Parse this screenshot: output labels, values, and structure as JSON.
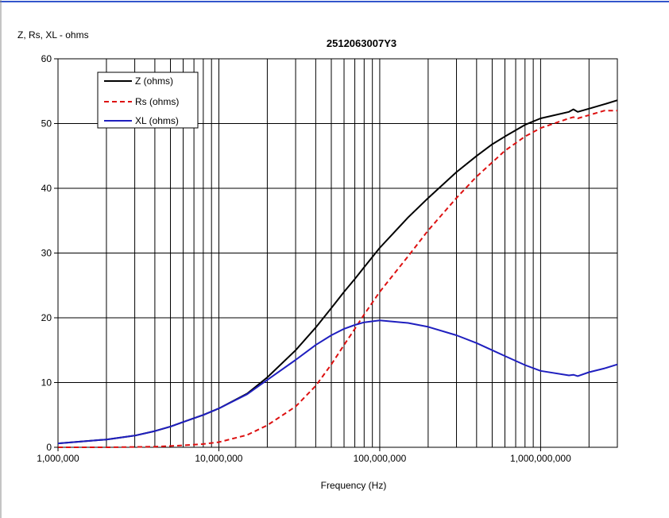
{
  "chart_data": {
    "type": "line",
    "title": "2512063007Y3",
    "ylabel": "Z, Rs, XL - ohms",
    "xlabel": "Frequency (Hz)",
    "x_scale": "log",
    "xlim": [
      1000000,
      3000000000
    ],
    "ylim": [
      0,
      60
    ],
    "x_ticks": [
      1000000,
      10000000,
      100000000,
      1000000000
    ],
    "x_tick_labels": [
      "1,000,000",
      "10,000,000",
      "100,000,000",
      "1,000,000,000"
    ],
    "y_ticks": [
      0,
      10,
      20,
      30,
      40,
      50,
      60
    ],
    "y_tick_labels": [
      "0",
      "10",
      "20",
      "30",
      "40",
      "50",
      "60"
    ],
    "grid": true,
    "legend_position": "top-left",
    "x": [
      1000000,
      2000000,
      3000000,
      4000000,
      5000000,
      6000000,
      8000000,
      10000000,
      15000000,
      20000000,
      30000000,
      40000000,
      50000000,
      60000000,
      70000000,
      80000000,
      100000000,
      150000000,
      200000000,
      300000000,
      400000000,
      500000000,
      600000000,
      800000000,
      1000000000,
      1500000000,
      1600000000,
      1700000000,
      2000000000,
      2500000000,
      3000000000
    ],
    "series": [
      {
        "name": "Z (ohms)",
        "color": "#000000",
        "dash": "solid",
        "values": [
          0.6,
          1.2,
          1.8,
          2.5,
          3.2,
          3.9,
          5.0,
          6.0,
          8.3,
          10.8,
          15.0,
          18.5,
          21.5,
          24.0,
          26.0,
          27.8,
          30.8,
          35.5,
          38.5,
          42.5,
          45.0,
          46.8,
          48.0,
          49.8,
          50.8,
          51.8,
          52.2,
          51.8,
          52.3,
          53.0,
          53.6
        ]
      },
      {
        "name": "Rs (ohms)",
        "color": "#dd1111",
        "dash": "dashed",
        "values": [
          0.0,
          0.0,
          0.05,
          0.1,
          0.2,
          0.3,
          0.5,
          0.8,
          1.9,
          3.4,
          6.3,
          9.5,
          12.8,
          15.8,
          18.3,
          20.5,
          24.0,
          29.5,
          33.5,
          38.5,
          41.8,
          44.0,
          45.8,
          48.0,
          49.3,
          50.8,
          51.0,
          50.8,
          51.3,
          52.0,
          52.0
        ]
      },
      {
        "name": "XL (ohms)",
        "color": "#1f1fbf",
        "dash": "solid",
        "values": [
          0.6,
          1.2,
          1.8,
          2.5,
          3.2,
          3.9,
          5.0,
          6.0,
          8.2,
          10.4,
          13.5,
          15.8,
          17.3,
          18.3,
          18.9,
          19.3,
          19.6,
          19.2,
          18.6,
          17.3,
          16.1,
          15.0,
          14.1,
          12.7,
          11.8,
          11.1,
          11.2,
          11.0,
          11.6,
          12.2,
          12.8
        ]
      }
    ]
  }
}
